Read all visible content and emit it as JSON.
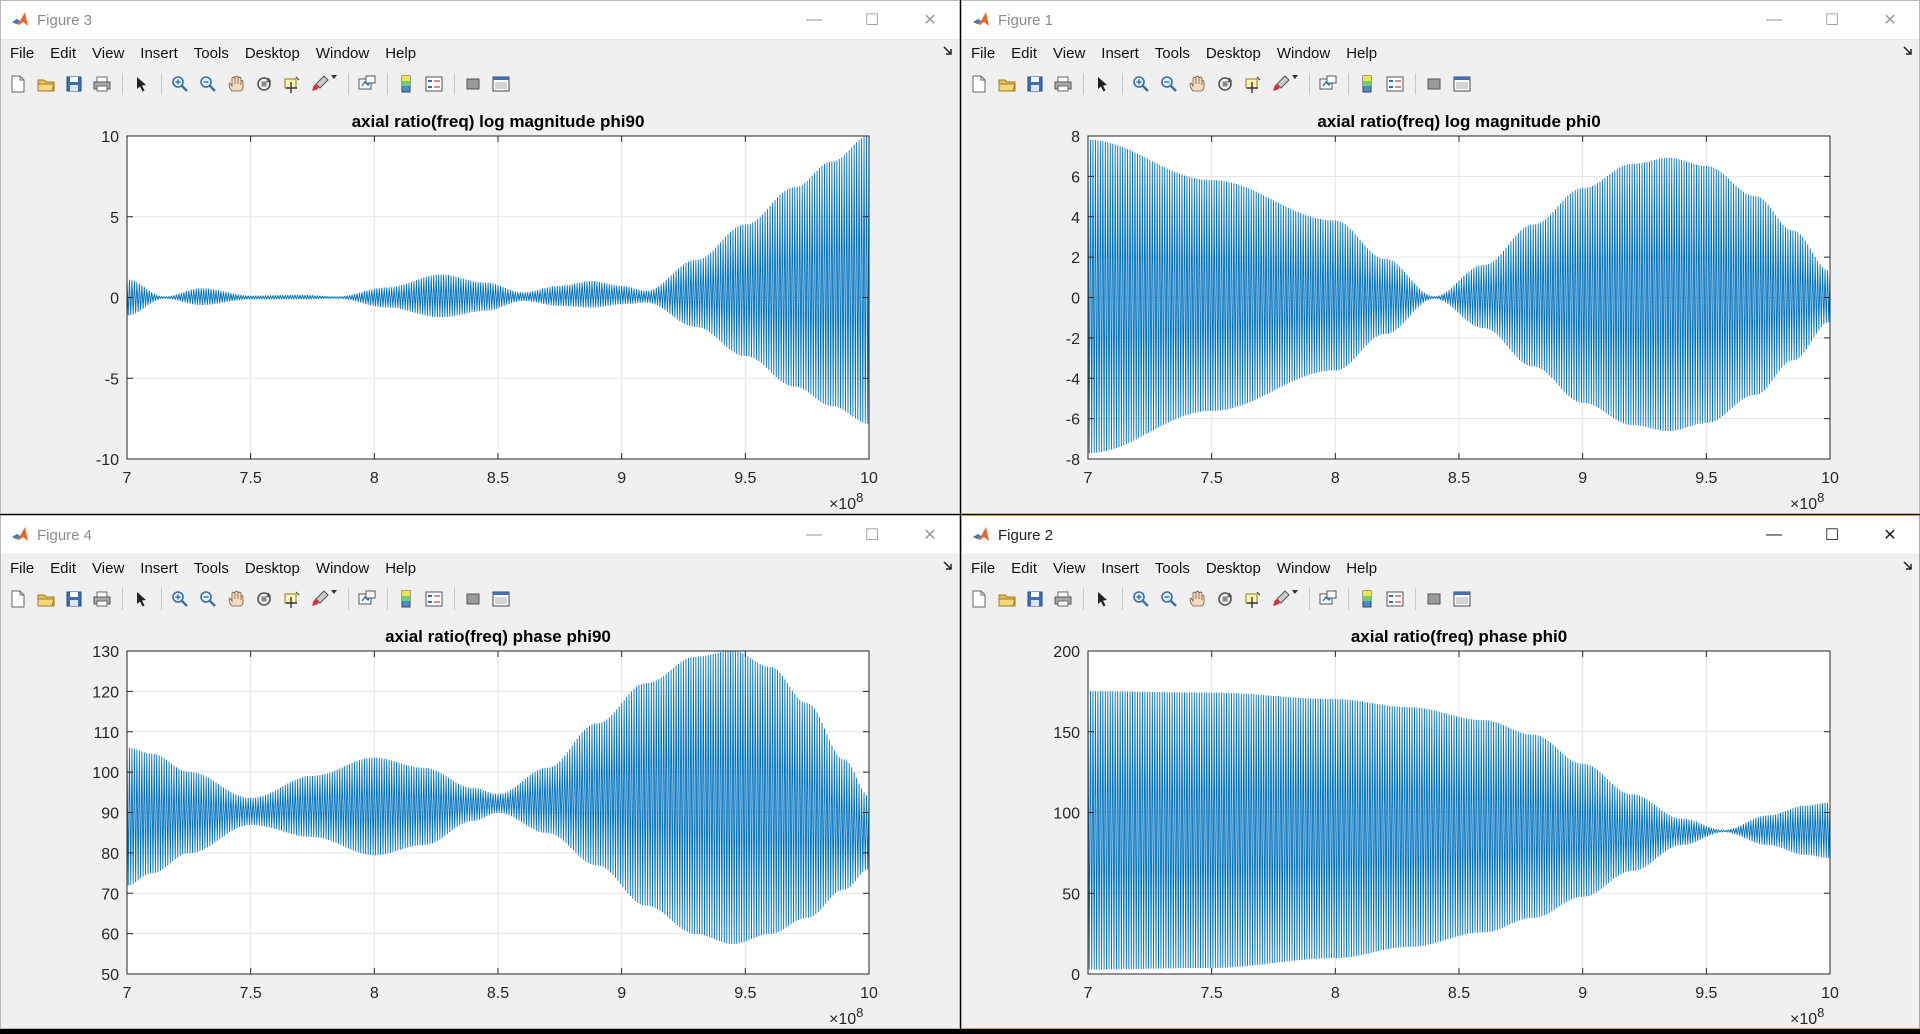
{
  "ui": {
    "menu": [
      "File",
      "Edit",
      "View",
      "Insert",
      "Tools",
      "Desktop",
      "Window",
      "Help"
    ],
    "toolbar_icons": [
      "new-figure-icon",
      "open-file-icon",
      "save-icon",
      "print-icon",
      "sep",
      "edit-plot-arrow-icon",
      "sep",
      "zoom-in-icon",
      "zoom-out-icon",
      "pan-hand-icon",
      "rotate-3d-icon",
      "data-cursor-icon",
      "brush-icon",
      "sep",
      "link-plot-icon",
      "sep",
      "colorbar-icon",
      "legend-icon",
      "sep",
      "hide-plot-tools-icon",
      "show-plot-tools-icon"
    ],
    "window_controls": {
      "minimize": "—",
      "maximize": "☐",
      "close": "✕"
    },
    "accent": "#0072bd",
    "active_window": "Figure 2"
  },
  "windows": [
    {
      "id": "fig3",
      "title": "Figure 3"
    },
    {
      "id": "fig1",
      "title": "Figure 1"
    },
    {
      "id": "fig4",
      "title": "Figure 4"
    },
    {
      "id": "fig2",
      "title": "Figure 2"
    }
  ],
  "chart_data": [
    {
      "type": "line",
      "title": "axial ratio(freq) log magnitude phi90",
      "xlabel": "",
      "ylabel": "",
      "xlim": [
        7,
        10
      ],
      "ylim": [
        -10,
        10
      ],
      "xticks": [
        7,
        7.5,
        8,
        8.5,
        9,
        9.5,
        10
      ],
      "yticks": [
        -10,
        -5,
        0,
        5,
        10
      ],
      "x_exponent": "×10^8",
      "grid": true,
      "series": [
        {
          "color": "#0072bd",
          "envelope": {
            "x": [
              7,
              7.15,
              7.3,
              7.5,
              7.7,
              7.85,
              8.05,
              8.27,
              8.45,
              8.6,
              8.75,
              8.88,
              9.0,
              9.1,
              9.3,
              9.5,
              9.7,
              9.85,
              10.0
            ],
            "upper": [
              1.1,
              0.05,
              0.55,
              0.1,
              0.15,
              0.05,
              0.6,
              1.4,
              0.9,
              0.3,
              0.7,
              1.0,
              0.7,
              0.4,
              2.3,
              4.5,
              6.8,
              8.4,
              10.0
            ],
            "lower": [
              -1.1,
              -0.05,
              -0.45,
              -0.1,
              -0.1,
              -0.05,
              -0.6,
              -1.2,
              -0.8,
              -0.2,
              -0.5,
              -0.6,
              -0.4,
              -0.3,
              -1.8,
              -3.6,
              -5.5,
              -6.7,
              -7.8
            ]
          }
        }
      ]
    },
    {
      "type": "line",
      "title": "axial ratio(freq) log magnitude phi0",
      "xlabel": "",
      "ylabel": "",
      "xlim": [
        7,
        10
      ],
      "ylim": [
        -8,
        8
      ],
      "xticks": [
        7,
        7.5,
        8,
        8.5,
        9,
        9.5,
        10
      ],
      "yticks": [
        -8,
        -6,
        -4,
        -2,
        0,
        2,
        4,
        6,
        8
      ],
      "x_exponent": "×10^8",
      "grid": true,
      "series": [
        {
          "color": "#0072bd",
          "envelope": {
            "x": [
              7,
              7.5,
              8,
              8.2,
              8.4,
              8.6,
              8.8,
              9.0,
              9.2,
              9.35,
              9.5,
              9.7,
              9.85,
              10.0
            ],
            "upper": [
              7.8,
              5.8,
              3.8,
              1.9,
              0.05,
              1.6,
              3.6,
              5.4,
              6.6,
              6.9,
              6.5,
              5.0,
              3.3,
              1.3
            ],
            "lower": [
              -7.7,
              -5.6,
              -3.6,
              -1.8,
              -0.05,
              -1.5,
              -3.4,
              -5.2,
              -6.3,
              -6.6,
              -6.2,
              -4.8,
              -3.1,
              -1.2
            ]
          }
        }
      ]
    },
    {
      "type": "line",
      "title": "axial ratio(freq) phase phi90",
      "xlabel": "",
      "ylabel": "",
      "xlim": [
        7,
        10
      ],
      "ylim": [
        50,
        130
      ],
      "xticks": [
        7,
        7.5,
        8,
        8.5,
        9,
        9.5,
        10
      ],
      "yticks": [
        50,
        60,
        70,
        80,
        90,
        100,
        110,
        120,
        130
      ],
      "x_exponent": "×10^8",
      "grid": true,
      "series": [
        {
          "color": "#0072bd",
          "envelope": {
            "x": [
              7,
              7.1,
              7.25,
              7.5,
              7.75,
              8.0,
              8.2,
              8.4,
              8.5,
              8.7,
              8.9,
              9.1,
              9.3,
              9.45,
              9.6,
              9.75,
              9.9,
              10.0
            ],
            "upper": [
              106,
              104.5,
              100,
              93.5,
              99,
              103.5,
              101,
              96,
              94.5,
              101,
              112,
              122,
              128.5,
              130,
              126,
              117,
              103,
              94
            ],
            "lower": [
              72,
              75,
              80,
              87,
              84,
              79.5,
              82,
              88,
              90,
              85,
              77,
              67,
              60,
              57.5,
              60,
              64,
              71,
              76
            ]
          }
        }
      ]
    },
    {
      "type": "line",
      "title": "axial ratio(freq) phase phi0",
      "xlabel": "",
      "ylabel": "",
      "xlim": [
        7,
        10
      ],
      "ylim": [
        0,
        200
      ],
      "xticks": [
        7,
        7.5,
        8,
        8.5,
        9,
        9.5,
        10
      ],
      "yticks": [
        0,
        50,
        100,
        150,
        200
      ],
      "x_exponent": "×10^8",
      "grid": true,
      "series": [
        {
          "color": "#0072bd",
          "envelope": {
            "x": [
              7,
              7.5,
              8,
              8.3,
              8.6,
              8.8,
              9.0,
              9.2,
              9.4,
              9.57,
              9.75,
              9.9,
              10.0
            ],
            "upper": [
              175,
              174,
              170,
              165,
              157,
              148,
              130,
              111,
              96,
              89,
              98,
              104,
              106
            ],
            "lower": [
              3,
              4,
              10,
              17,
              26,
              35,
              48,
              64,
              80,
              88,
              80,
              74,
              72
            ]
          }
        }
      ]
    }
  ]
}
